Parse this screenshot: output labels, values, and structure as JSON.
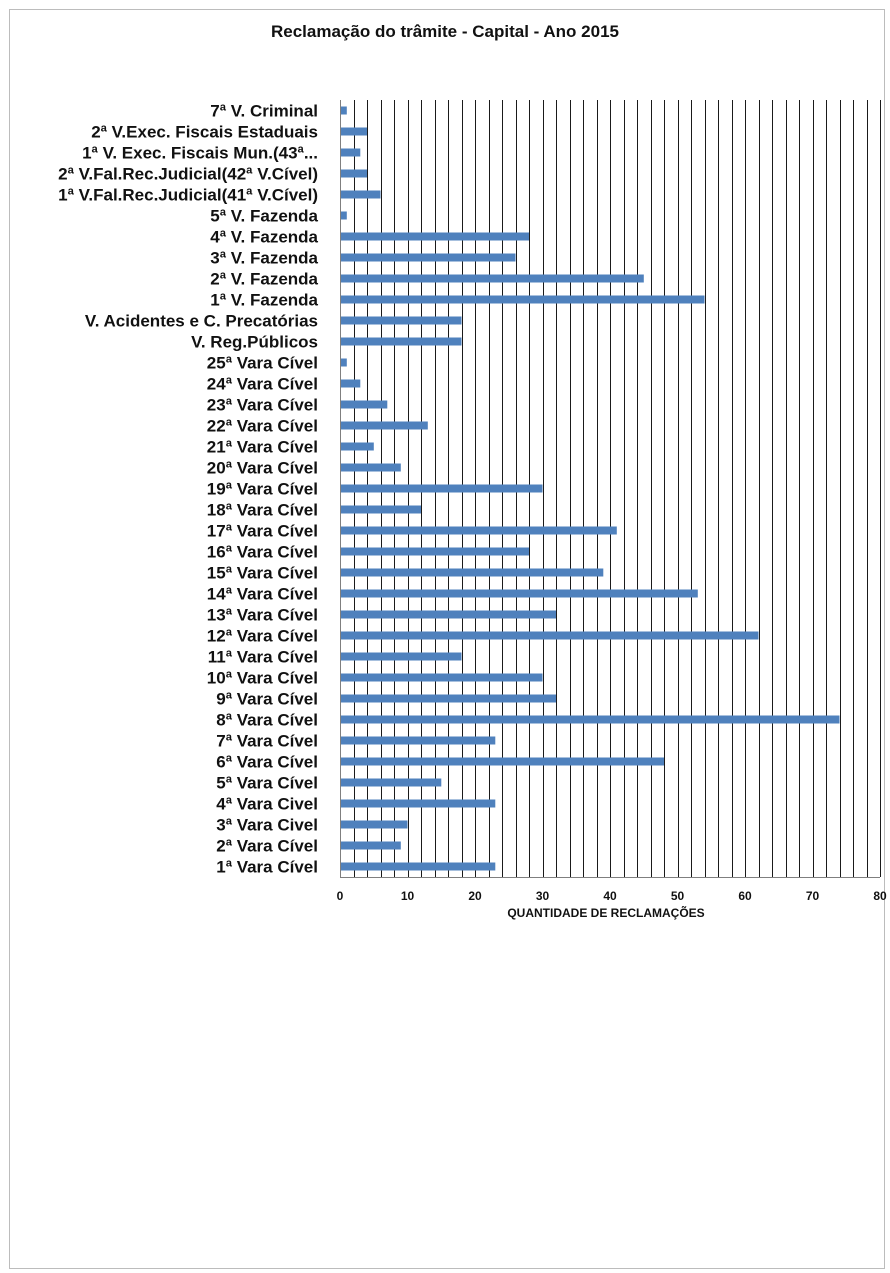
{
  "chart_data": {
    "type": "bar",
    "orientation": "horizontal",
    "title": "Reclamação do trâmite - Capital - Ano 2015",
    "xlabel": "QUANTIDADE DE RECLAMAÇÕES",
    "ylabel": "",
    "xlim": [
      0,
      80
    ],
    "x_major_ticks": [
      0,
      10,
      20,
      30,
      40,
      50,
      60,
      70,
      80
    ],
    "x_gridline_step": 2,
    "grid": true,
    "legend": "none",
    "bar_color": "#4f81bd",
    "categories": [
      "7ª V. Criminal",
      "2ª V.Exec. Fiscais Estaduais",
      "1ª V. Exec. Fiscais Mun.(43ª...",
      "2ª V.Fal.Rec.Judicial(42ª V.Cível)",
      "1ª V.Fal.Rec.Judicial(41ª V.Cível)",
      "5ª V. Fazenda",
      "4ª V. Fazenda",
      "3ª V. Fazenda",
      "2ª V. Fazenda",
      "1ª V. Fazenda",
      "V. Acidentes e C. Precatórias",
      "V. Reg.Públicos",
      "25ª Vara Cível",
      "24ª Vara Cível",
      "23ª Vara Cível",
      "22ª Vara Cível",
      "21ª Vara Cível",
      "20ª Vara Cível",
      "19ª Vara Cível",
      "18ª Vara Cível",
      "17ª Vara Cível",
      "16ª Vara Cível",
      "15ª Vara Cível",
      "14ª Vara Cível",
      "13ª Vara Cível",
      "12ª Vara Cível",
      "11ª Vara Cível",
      "10ª Vara Cível",
      "9ª Vara Cível",
      "8ª Vara Cível",
      "7ª Vara Cível",
      "6ª Vara Cível",
      "5ª Vara Cível",
      "4ª Vara Civel",
      "3ª Vara Civel",
      "2ª Vara Cível",
      "1ª Vara Cível"
    ],
    "values": [
      1,
      4,
      3,
      4,
      6,
      1,
      28,
      26,
      45,
      54,
      18,
      18,
      1,
      3,
      7,
      13,
      5,
      9,
      30,
      12,
      41,
      28,
      39,
      53,
      32,
      62,
      18,
      30,
      32,
      74,
      23,
      48,
      15,
      23,
      10,
      9,
      23
    ]
  }
}
